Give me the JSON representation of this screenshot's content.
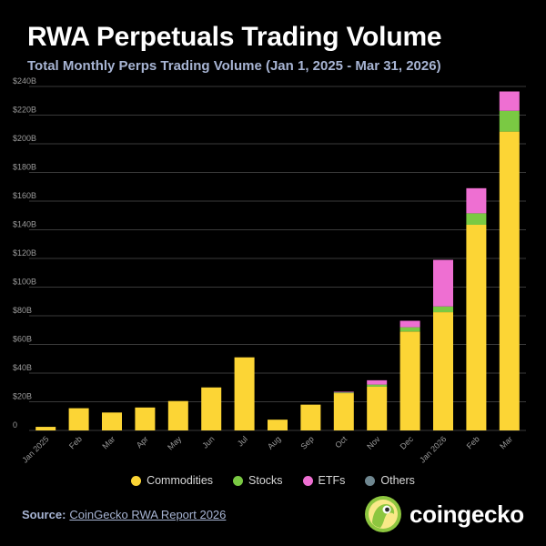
{
  "title": "RWA Perpetuals Trading Volume",
  "subtitle": "Total Monthly Perps Trading Volume (Jan 1, 2025 - Mar 31, 2026)",
  "source_label": "Source:",
  "source_link": "CoinGecko RWA Report 2026",
  "brand": "coingecko",
  "colors": {
    "commodities": "#fcd535",
    "stocks": "#7ac943",
    "etfs": "#ee6fd2",
    "others": "#6f8790",
    "grid": "#3a3a3a",
    "axis_text": "#9a9a9a"
  },
  "chart_data": {
    "type": "bar",
    "stacked": true,
    "categories": [
      "Jan 2025",
      "Feb",
      "Mar",
      "Apr",
      "May",
      "Jun",
      "Jul",
      "Aug",
      "Sep",
      "Oct",
      "Nov",
      "Dec",
      "Jan 2026",
      "Feb",
      "Mar"
    ],
    "series": [
      {
        "name": "Commodities",
        "color": "#fcd535",
        "values": [
          2.5,
          15.5,
          12.5,
          16,
          20.5,
          30,
          51,
          7.5,
          18,
          26,
          30.5,
          69,
          82.5,
          143.5,
          208.5
        ]
      },
      {
        "name": "Stocks",
        "color": "#7ac943",
        "values": [
          0,
          0,
          0,
          0,
          0,
          0,
          0,
          0,
          0,
          0.5,
          1.5,
          3,
          4,
          8,
          14.5
        ]
      },
      {
        "name": "ETFs",
        "color": "#ee6fd2",
        "values": [
          0,
          0,
          0,
          0,
          0,
          0,
          0,
          0,
          0,
          0.5,
          3,
          4.5,
          32.5,
          17.5,
          13.5
        ]
      },
      {
        "name": "Others",
        "color": "#6f8790",
        "values": [
          0,
          0,
          0,
          0,
          0,
          0,
          0,
          0,
          0,
          0,
          0,
          0,
          0,
          0,
          0
        ]
      }
    ],
    "yticks": [
      "0",
      "$20B",
      "$40B",
      "$60B",
      "$80B",
      "$100B",
      "$120B",
      "$140B",
      "$160B",
      "$180B",
      "$200B",
      "$220B",
      "$240B"
    ],
    "ylim": [
      0,
      240
    ],
    "grid": true,
    "legend_position": "bottom"
  }
}
